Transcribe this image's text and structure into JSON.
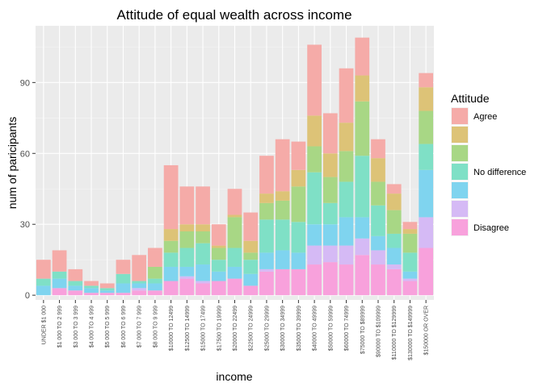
{
  "chart_data": {
    "type": "bar",
    "stacked": true,
    "title": "Attitude of equal wealth across income",
    "xlabel": "income",
    "ylabel": "num of paricipants",
    "ylim": [
      -2,
      114
    ],
    "yticks": [
      0,
      30,
      60,
      90
    ],
    "grid": true,
    "legend": {
      "title": "Attitude",
      "position": "right",
      "entries": [
        "Agree",
        "",
        "",
        "No difference",
        "",
        "",
        "Disagree"
      ]
    },
    "categories": [
      "UNDER $1 000",
      "$1 000 TO 2 999",
      "$3 000 TO 3 999",
      "$4 000 TO 4 999",
      "$5 000 TO 5 999",
      "$6 000 TO 6 999",
      "$7 000 TO 7 999",
      "$8 000 TO 9 999",
      "$10000 TO 12499",
      "$12500 TO 14999",
      "$15000 TO 17499",
      "$17500 TO 19999",
      "$20000 TO 22499",
      "$22500 TO 24999",
      "$25000 TO 29999",
      "$30000 TO 34999",
      "$35000 TO 39999",
      "$40000 TO 49999",
      "$50000 TO 59999",
      "$60000 TO 74999",
      "$75000 TO $89999",
      "$90000 TO $109999",
      "$110000 TO $129999",
      "$130000 TO $149999",
      "$150000 OR OVER"
    ],
    "series": [
      {
        "name": "Disagree",
        "color": "#f8a1dc",
        "values": [
          0,
          3,
          2,
          1,
          1,
          1,
          2,
          2,
          6,
          7,
          5,
          6,
          7,
          4,
          10,
          11,
          11,
          13,
          14,
          13,
          17,
          13,
          11,
          6,
          20
        ]
      },
      {
        "name": "",
        "color": "#d5baf5",
        "values": [
          0,
          0,
          0,
          0,
          0,
          0,
          1,
          0,
          0,
          1,
          1,
          0,
          0,
          0,
          1,
          0,
          0,
          8,
          7,
          8,
          7,
          6,
          2,
          1,
          13
        ]
      },
      {
        "name": "",
        "color": "#7fd4ef",
        "values": [
          4,
          4,
          2,
          2,
          1,
          4,
          2,
          3,
          6,
          4,
          7,
          4,
          5,
          5,
          7,
          8,
          7,
          9,
          9,
          12,
          9,
          6,
          7,
          3,
          20
        ]
      },
      {
        "name": "No difference",
        "color": "#7fe0c6",
        "values": [
          3,
          3,
          2,
          1,
          1,
          4,
          1,
          2,
          6,
          8,
          9,
          5,
          8,
          6,
          14,
          13,
          13,
          22,
          9,
          15,
          26,
          13,
          6,
          8,
          11
        ]
      },
      {
        "name": "",
        "color": "#a8d785",
        "values": [
          0,
          0,
          0,
          0,
          0,
          0,
          0,
          5,
          5,
          7,
          5,
          5,
          13,
          3,
          7,
          8,
          15,
          11,
          11,
          13,
          23,
          10,
          10,
          8,
          14
        ]
      },
      {
        "name": "",
        "color": "#ddc377",
        "values": [
          0,
          0,
          0,
          0,
          0,
          0,
          0,
          0,
          5,
          3,
          3,
          1,
          1,
          5,
          4,
          4,
          7,
          13,
          10,
          12,
          11,
          10,
          7,
          2,
          10
        ]
      },
      {
        "name": "Agree",
        "color": "#f5aba8",
        "values": [
          8,
          9,
          5,
          2,
          2,
          6,
          11,
          8,
          27,
          16,
          16,
          9,
          11,
          12,
          16,
          22,
          12,
          30,
          17,
          23,
          16,
          8,
          4,
          3,
          6
        ]
      }
    ]
  }
}
